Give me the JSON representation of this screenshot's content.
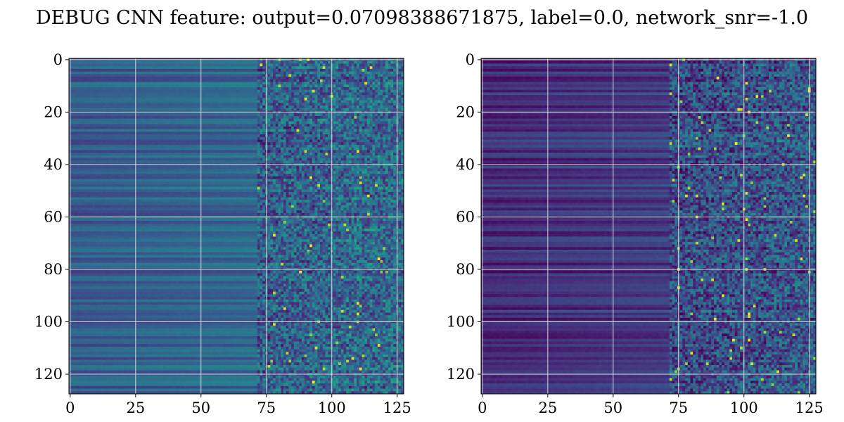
{
  "title": "DEBUG CNN feature: output=0.07098388671875, label=0.0, network_snr=-1.0",
  "colormap": {
    "name": "viridis",
    "stops": [
      "#440154",
      "#482878",
      "#3e4989",
      "#31688e",
      "#26828e",
      "#1f9e89",
      "#35b779",
      "#6ece58",
      "#b5de2b",
      "#fde725"
    ]
  },
  "grid_color": "#d9d9d9",
  "chart_data": [
    {
      "type": "heatmap",
      "name": "",
      "rows": 128,
      "cols": 128,
      "xlim": [
        0,
        127
      ],
      "ylim": [
        127,
        0
      ],
      "xticks": [
        0,
        25,
        50,
        75,
        100,
        125
      ],
      "yticks": [
        0,
        20,
        40,
        60,
        80,
        100,
        120
      ],
      "grid": true,
      "description": "intensity increases to the right; left ~75 columns smooth horizontal bands, right columns noisy speckle",
      "seed": 7,
      "base_level": 0.28,
      "right_level": 0.42
    },
    {
      "type": "heatmap",
      "name": "",
      "rows": 128,
      "cols": 128,
      "xlim": [
        0,
        127
      ],
      "ylim": [
        127,
        0
      ],
      "xticks": [
        0,
        25,
        50,
        75,
        100,
        125
      ],
      "yticks": [
        0,
        20,
        40,
        60,
        80,
        100,
        120
      ],
      "grid": true,
      "seed": 19,
      "base_level": 0.12,
      "right_level": 0.3
    }
  ]
}
